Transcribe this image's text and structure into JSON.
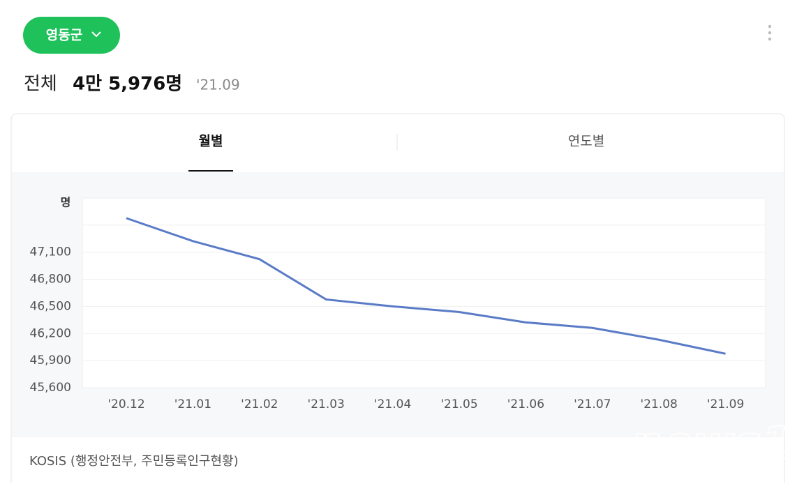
{
  "header": {
    "region_button": "영동군",
    "total_label": "전체",
    "total_value": "4만 5,976명",
    "date": "'21.09"
  },
  "tabs": [
    "월별",
    "연도별"
  ],
  "chart_data": {
    "type": "line",
    "y_label": "명",
    "categories": [
      "'20.12",
      "'21.01",
      "'21.02",
      "'21.03",
      "'21.04",
      "'21.05",
      "'21.06",
      "'21.07",
      "'21.08",
      "'21.09"
    ],
    "values": [
      47477,
      47223,
      47023,
      46577,
      46500,
      46438,
      46323,
      46262,
      46131,
      45976
    ],
    "color": "#5a7bc7",
    "ylim": [
      45600,
      47700
    ],
    "yticks": [
      {
        "value": 45600,
        "label": "45,600"
      },
      {
        "value": 45900,
        "label": "45,900"
      },
      {
        "value": 46200,
        "label": "46,200"
      },
      {
        "value": 46500,
        "label": "46,500"
      },
      {
        "value": 46800,
        "label": "46,800"
      },
      {
        "value": 47100,
        "label": "47,100"
      },
      {
        "value": 47400,
        "label": null
      }
    ],
    "grid": true
  },
  "source": "KOSIS (행정안전부, 주민등록인구현황)",
  "watermark": "news1"
}
